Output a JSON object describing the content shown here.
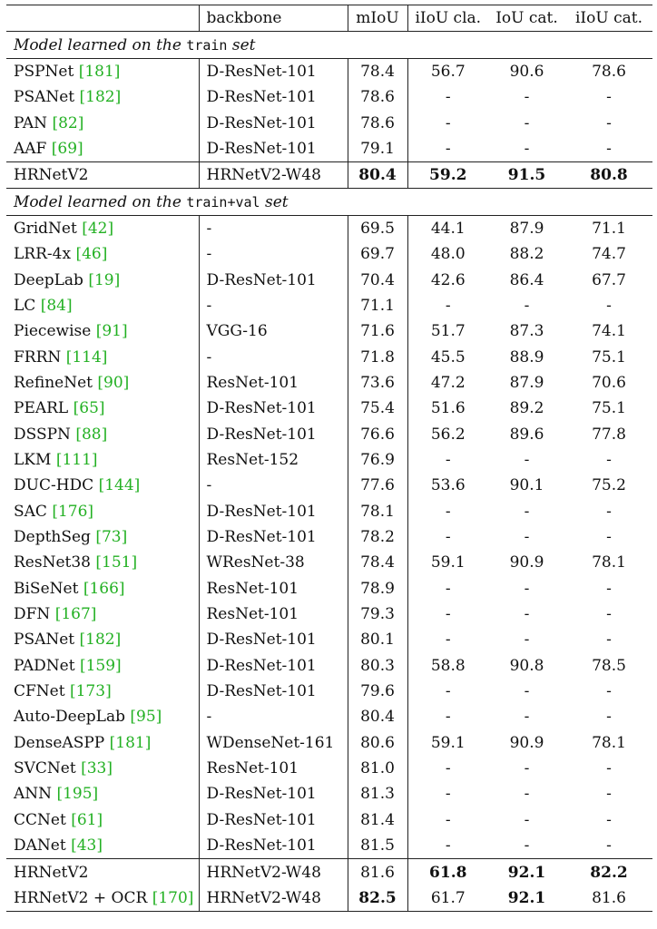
{
  "header": {
    "backbone": "backbone",
    "miou": "mIoU",
    "iiou_cla": "iIoU cla.",
    "iou_cat": "IoU cat.",
    "iiou_cat": "iIoU cat."
  },
  "section1": {
    "prefix": "Model learned on the ",
    "set": "train",
    "suffix": " set"
  },
  "section2": {
    "prefix": "Model learned on the ",
    "set": "train+val",
    "suffix": " set"
  },
  "rows_train": [
    {
      "method": "PSPNet ",
      "ref": "[181]",
      "backbone": "D-ResNet-101",
      "miou": "78.4",
      "iiou_cla": "56.7",
      "iou_cat": "90.6",
      "iiou_cat": "78.6"
    },
    {
      "method": "PSANet ",
      "ref": "[182]",
      "backbone": "D-ResNet-101",
      "miou": "78.6",
      "iiou_cla": "-",
      "iou_cat": "-",
      "iiou_cat": "-"
    },
    {
      "method": "PAN ",
      "ref": "[82]",
      "backbone": "D-ResNet-101",
      "miou": "78.6",
      "iiou_cla": "-",
      "iou_cat": "-",
      "iiou_cat": "-"
    },
    {
      "method": "AAF ",
      "ref": "[69]",
      "backbone": "D-ResNet-101",
      "miou": "79.1",
      "iiou_cla": "-",
      "iou_cat": "-",
      "iiou_cat": "-"
    }
  ],
  "hrnet_train": {
    "method": "HRNetV2",
    "backbone": "HRNetV2-W48",
    "miou": "80.4",
    "iiou_cla": "59.2",
    "iou_cat": "91.5",
    "iiou_cat": "80.8"
  },
  "rows_trainval": [
    {
      "method": "GridNet ",
      "ref": "[42]",
      "backbone": "-",
      "miou": "69.5",
      "iiou_cla": "44.1",
      "iou_cat": "87.9",
      "iiou_cat": "71.1"
    },
    {
      "method": "LRR-4x ",
      "ref": "[46]",
      "backbone": "-",
      "miou": "69.7",
      "iiou_cla": "48.0",
      "iou_cat": "88.2",
      "iiou_cat": "74.7"
    },
    {
      "method": "DeepLab ",
      "ref": "[19]",
      "backbone": "D-ResNet-101",
      "miou": "70.4",
      "iiou_cla": "42.6",
      "iou_cat": "86.4",
      "iiou_cat": "67.7"
    },
    {
      "method": "LC ",
      "ref": "[84]",
      "backbone": "-",
      "miou": "71.1",
      "iiou_cla": "-",
      "iou_cat": "-",
      "iiou_cat": "-"
    },
    {
      "method": "Piecewise ",
      "ref": "[91]",
      "backbone": "VGG-16",
      "miou": "71.6",
      "iiou_cla": "51.7",
      "iou_cat": "87.3",
      "iiou_cat": "74.1"
    },
    {
      "method": "FRRN ",
      "ref": "[114]",
      "backbone": "-",
      "miou": "71.8",
      "iiou_cla": "45.5",
      "iou_cat": "88.9",
      "iiou_cat": "75.1"
    },
    {
      "method": "RefineNet ",
      "ref": "[90]",
      "backbone": "ResNet-101",
      "miou": "73.6",
      "iiou_cla": "47.2",
      "iou_cat": "87.9",
      "iiou_cat": "70.6"
    },
    {
      "method": "PEARL ",
      "ref": "[65]",
      "backbone": "D-ResNet-101",
      "miou": "75.4",
      "iiou_cla": "51.6",
      "iou_cat": "89.2",
      "iiou_cat": "75.1"
    },
    {
      "method": "DSSPN ",
      "ref": "[88]",
      "backbone": "D-ResNet-101",
      "miou": "76.6",
      "iiou_cla": "56.2",
      "iou_cat": "89.6",
      "iiou_cat": "77.8"
    },
    {
      "method": "LKM ",
      "ref": "[111]",
      "backbone": "ResNet-152",
      "miou": "76.9",
      "iiou_cla": "-",
      "iou_cat": "-",
      "iiou_cat": "-"
    },
    {
      "method": "DUC-HDC ",
      "ref": "[144]",
      "backbone": "-",
      "miou": "77.6",
      "iiou_cla": "53.6",
      "iou_cat": "90.1",
      "iiou_cat": "75.2"
    },
    {
      "method": "SAC ",
      "ref": "[176]",
      "backbone": "D-ResNet-101",
      "miou": "78.1",
      "iiou_cla": "-",
      "iou_cat": "-",
      "iiou_cat": "-"
    },
    {
      "method": "DepthSeg ",
      "ref": "[73]",
      "backbone": "D-ResNet-101",
      "miou": "78.2",
      "iiou_cla": "-",
      "iou_cat": "-",
      "iiou_cat": "-"
    },
    {
      "method": "ResNet38 ",
      "ref": "[151]",
      "backbone": "WResNet-38",
      "miou": "78.4",
      "iiou_cla": "59.1",
      "iou_cat": "90.9",
      "iiou_cat": "78.1"
    },
    {
      "method": "BiSeNet ",
      "ref": "[166]",
      "backbone": "ResNet-101",
      "miou": "78.9",
      "iiou_cla": "-",
      "iou_cat": "-",
      "iiou_cat": "-"
    },
    {
      "method": "DFN ",
      "ref": "[167]",
      "backbone": "ResNet-101",
      "miou": "79.3",
      "iiou_cla": "-",
      "iou_cat": "-",
      "iiou_cat": "-"
    },
    {
      "method": "PSANet ",
      "ref": "[182]",
      "backbone": "D-ResNet-101",
      "miou": "80.1",
      "iiou_cla": "-",
      "iou_cat": "-",
      "iiou_cat": "-"
    },
    {
      "method": "PADNet ",
      "ref": "[159]",
      "backbone": "D-ResNet-101",
      "miou": "80.3",
      "iiou_cla": "58.8",
      "iou_cat": "90.8",
      "iiou_cat": "78.5"
    },
    {
      "method": "CFNet ",
      "ref": "[173]",
      "backbone": "D-ResNet-101",
      "miou": "79.6",
      "iiou_cla": "-",
      "iou_cat": "-",
      "iiou_cat": "-"
    },
    {
      "method": "Auto-DeepLab ",
      "ref": "[95]",
      "backbone": "-",
      "miou": "80.4",
      "iiou_cla": "-",
      "iou_cat": "-",
      "iiou_cat": "-"
    },
    {
      "method": "DenseASPP ",
      "ref": "[181]",
      "backbone": "WDenseNet-161",
      "miou": "80.6",
      "iiou_cla": "59.1",
      "iou_cat": "90.9",
      "iiou_cat": "78.1"
    },
    {
      "method": "SVCNet ",
      "ref": "[33]",
      "backbone": "ResNet-101",
      "miou": "81.0",
      "iiou_cla": "-",
      "iou_cat": "-",
      "iiou_cat": "-"
    },
    {
      "method": "ANN ",
      "ref": "[195]",
      "backbone": "D-ResNet-101",
      "miou": "81.3",
      "iiou_cla": "-",
      "iou_cat": "-",
      "iiou_cat": "-"
    },
    {
      "method": "CCNet ",
      "ref": "[61]",
      "backbone": "D-ResNet-101",
      "miou": "81.4",
      "iiou_cla": "-",
      "iou_cat": "-",
      "iiou_cat": "-"
    },
    {
      "method": "DANet ",
      "ref": "[43]",
      "backbone": "D-ResNet-101",
      "miou": "81.5",
      "iiou_cla": "-",
      "iou_cat": "-",
      "iiou_cat": "-"
    }
  ],
  "hrnet_trainval": {
    "method": "HRNetV2",
    "backbone": "HRNetV2-W48",
    "miou": "81.6",
    "iiou_cla": "61.8",
    "iou_cat": "92.1",
    "iiou_cat": "82.2"
  },
  "hrnet_ocr": {
    "method": "HRNetV2 + OCR ",
    "ref": "[170]",
    "backbone": "HRNetV2-W48",
    "miou": "82.5",
    "iiou_cla": "61.7",
    "iou_cat": "92.1",
    "iiou_cat": "81.6"
  }
}
